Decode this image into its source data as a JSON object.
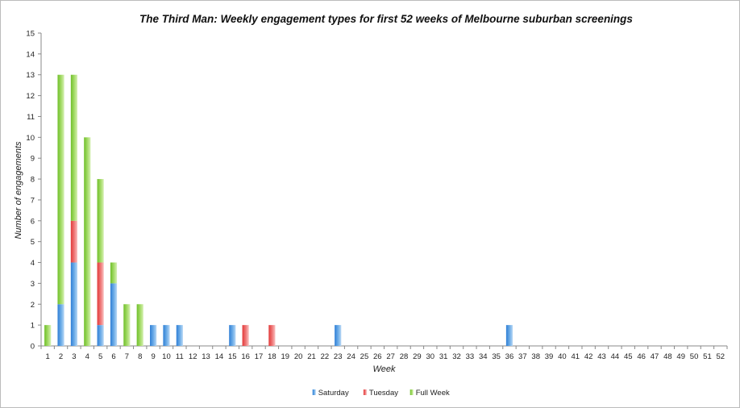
{
  "chart_data": {
    "type": "bar",
    "stacked": true,
    "title": "The Third Man: Weekly engagement types for first 52 weeks of Melbourne suburban screenings",
    "xlabel": "Week",
    "ylabel": "Number of engagements",
    "ylim": [
      0,
      15
    ],
    "ytick_step": 1,
    "grid": false,
    "legend_position": "bottom",
    "categories": [
      "1",
      "2",
      "3",
      "4",
      "5",
      "6",
      "7",
      "8",
      "9",
      "10",
      "11",
      "12",
      "13",
      "14",
      "15",
      "16",
      "17",
      "18",
      "19",
      "20",
      "21",
      "22",
      "23",
      "24",
      "25",
      "26",
      "27",
      "28",
      "29",
      "30",
      "31",
      "32",
      "33",
      "34",
      "35",
      "36",
      "37",
      "38",
      "39",
      "40",
      "41",
      "42",
      "43",
      "44",
      "45",
      "46",
      "47",
      "48",
      "49",
      "50",
      "51",
      "52"
    ],
    "series": [
      {
        "name": "Saturday",
        "color": "#5b9bd5",
        "values": [
          0,
          2,
          4,
          0,
          1,
          3,
          0,
          0,
          1,
          1,
          1,
          0,
          0,
          0,
          1,
          0,
          0,
          0,
          0,
          0,
          0,
          0,
          1,
          0,
          0,
          0,
          0,
          0,
          0,
          0,
          0,
          0,
          0,
          0,
          0,
          1,
          0,
          0,
          0,
          0,
          0,
          0,
          0,
          0,
          0,
          0,
          0,
          0,
          0,
          0,
          0,
          0
        ]
      },
      {
        "name": "Tuesday",
        "color": "#e85c5c",
        "values": [
          0,
          0,
          2,
          0,
          3,
          0,
          0,
          0,
          0,
          0,
          0,
          0,
          0,
          0,
          0,
          1,
          0,
          1,
          0,
          0,
          0,
          0,
          0,
          0,
          0,
          0,
          0,
          0,
          0,
          0,
          0,
          0,
          0,
          0,
          0,
          0,
          0,
          0,
          0,
          0,
          0,
          0,
          0,
          0,
          0,
          0,
          0,
          0,
          0,
          0,
          0,
          0
        ]
      },
      {
        "name": "Full Week",
        "color": "#8fcf45",
        "values": [
          1,
          11,
          7,
          10,
          4,
          1,
          2,
          2,
          0,
          0,
          0,
          0,
          0,
          0,
          0,
          0,
          0,
          0,
          0,
          0,
          0,
          0,
          0,
          0,
          0,
          0,
          0,
          0,
          0,
          0,
          0,
          0,
          0,
          0,
          0,
          0,
          0,
          0,
          0,
          0,
          0,
          0,
          0,
          0,
          0,
          0,
          0,
          0,
          0,
          0,
          0,
          0
        ]
      }
    ]
  }
}
